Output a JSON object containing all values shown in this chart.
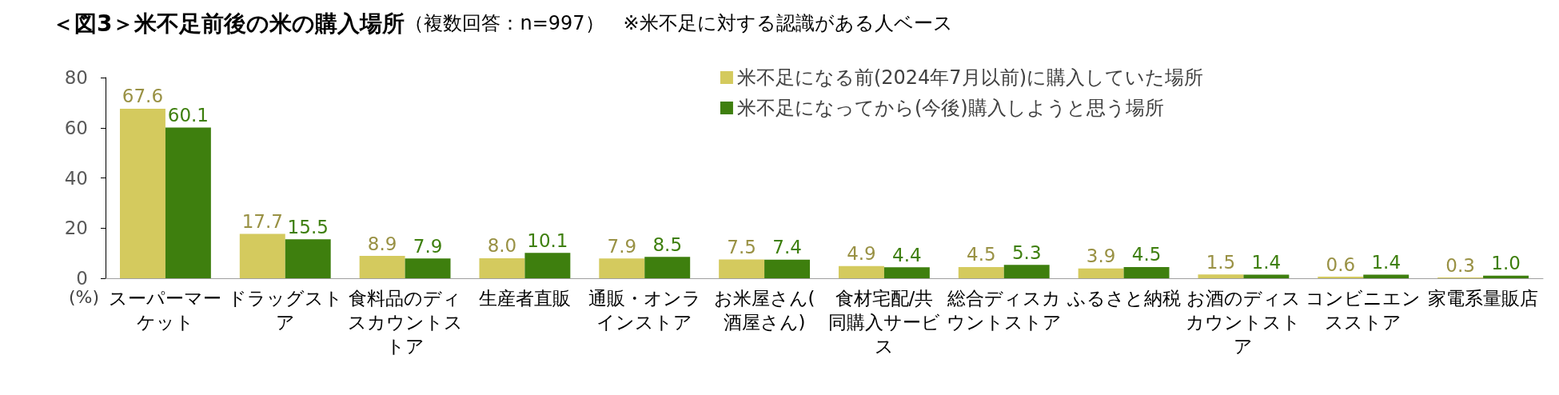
{
  "chart_data": {
    "type": "bar",
    "title": "＜図3＞米不足前後の米の購入場所",
    "subtitle": "（複数回答：n=997）　※米不足に対する認識がある人ベース",
    "ylabel": "(%)",
    "categories": [
      "スーパーマーケット",
      "ドラッグストア",
      "食料品のディスカウントストア",
      "生産者直販",
      "通販・オンラインストア",
      "お米屋さん(酒屋さん)",
      "食材宅配/共同購入サービス",
      "総合ディスカウントストア",
      "ふるさと納税",
      "お酒のディスカウントストア",
      "コンビニエンスストア",
      "家電系量販店"
    ],
    "series": [
      {
        "name": "米不足になる前(2024年7月以前)に購入していた場所",
        "color": "#d4ca5e",
        "values": [
          67.6,
          17.7,
          8.9,
          8.0,
          7.9,
          7.5,
          4.9,
          4.5,
          3.9,
          1.5,
          0.6,
          0.3
        ],
        "value_labels": [
          "67.6",
          "17.7",
          "8.9",
          "8.0",
          "7.9",
          "7.5",
          "4.9",
          "4.5",
          "3.9",
          "1.5",
          "0.6",
          "0.3"
        ]
      },
      {
        "name": "米不足になってから(今後)購入しようと思う場所",
        "color": "#3e7f0e",
        "values": [
          60.1,
          15.5,
          7.9,
          10.1,
          8.5,
          7.4,
          4.4,
          5.3,
          4.5,
          1.4,
          1.4,
          1.0
        ],
        "value_labels": [
          "60.1",
          "15.5",
          "7.9",
          "10.1",
          "8.5",
          "7.4",
          "4.4",
          "5.3",
          "4.5",
          "1.4",
          "1.4",
          "1.0"
        ]
      }
    ],
    "ylim": [
      0,
      80
    ],
    "yticks": [
      0,
      20,
      40,
      60,
      80
    ],
    "grid": false,
    "legend": "top right"
  }
}
